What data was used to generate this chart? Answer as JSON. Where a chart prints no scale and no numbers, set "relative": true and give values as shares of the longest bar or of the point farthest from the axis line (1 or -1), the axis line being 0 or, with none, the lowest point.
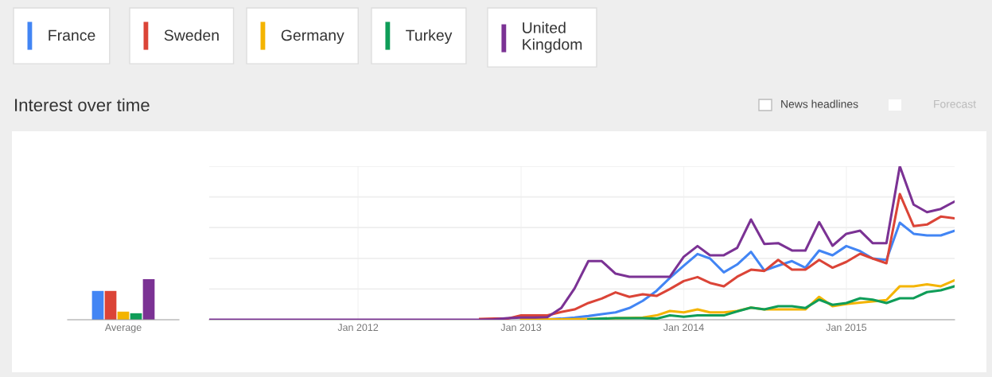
{
  "chart_data": [
    {
      "type": "bar",
      "relative": true,
      "categories": [
        "Average"
      ],
      "series": [
        {
          "color": "#4285f4",
          "values": [
            0.71
          ]
        },
        {
          "color": "#db4437",
          "values": [
            0.71
          ]
        },
        {
          "color": "#f4b400",
          "values": [
            0.2
          ]
        },
        {
          "color": "#0f9d58",
          "values": [
            0.16
          ]
        },
        {
          "color": "#7b3294",
          "values": [
            1.0
          ]
        }
      ]
    },
    {
      "type": "line",
      "relative": true,
      "title": "Interest over time",
      "legend": "top left",
      "grid": true,
      "annotations": [
        "News headlines",
        "Forecast"
      ],
      "x": [
        "2011-02",
        "2011-03",
        "2011-04",
        "2011-05",
        "2011-06",
        "2011-07",
        "2011-08",
        "2011-09",
        "2011-10",
        "2011-11",
        "2011-12",
        "2012-01",
        "2012-02",
        "2012-03",
        "2012-04",
        "2012-05",
        "2012-06",
        "2012-07",
        "2012-08",
        "2012-09",
        "2012-10",
        "2012-11",
        "2012-12",
        "2013-01",
        "2013-02",
        "2013-03",
        "2013-04",
        "2013-05",
        "2013-06",
        "2013-07",
        "2013-08",
        "2013-09",
        "2013-10",
        "2013-11",
        "2013-12",
        "2014-01",
        "2014-02",
        "2014-03",
        "2014-04",
        "2014-05",
        "2014-06",
        "2014-07",
        "2014-08",
        "2014-09",
        "2014-10",
        "2014-11",
        "2014-12",
        "2015-01",
        "2015-02",
        "2015-03",
        "2015-04",
        "2015-05",
        "2015-06",
        "2015-07",
        "2015-08",
        "2015-09"
      ],
      "xlim": [
        "2011-02",
        "2015-09"
      ],
      "xticks": [
        {
          "value": "2012-01",
          "label": "Jan 2012"
        },
        {
          "value": "2013-01",
          "label": "Jan 2013"
        },
        {
          "value": "2014-01",
          "label": "Jan 2014"
        },
        {
          "value": "2015-01",
          "label": "Jan 2015"
        }
      ],
      "series": [
        {
          "name": "France",
          "color": "#4285f4",
          "values": [
            null,
            null,
            null,
            null,
            null,
            null,
            null,
            null,
            null,
            null,
            null,
            null,
            null,
            null,
            null,
            null,
            null,
            null,
            null,
            null,
            null,
            null,
            null,
            null,
            null,
            0.002,
            0.007,
            0.014,
            0.024,
            0.036,
            0.048,
            0.076,
            0.123,
            0.188,
            0.273,
            0.352,
            0.428,
            0.399,
            0.309,
            0.36,
            0.442,
            0.321,
            0.352,
            0.382,
            0.339,
            0.451,
            0.42,
            0.48,
            0.447,
            0.399,
            0.39,
            0.632,
            0.56,
            0.549,
            0.549,
            0.58
          ]
        },
        {
          "name": "Sweden",
          "color": "#db4437",
          "values": [
            null,
            null,
            null,
            null,
            null,
            null,
            null,
            null,
            null,
            null,
            null,
            null,
            null,
            null,
            null,
            null,
            null,
            null,
            null,
            null,
            0.005,
            0.007,
            0.007,
            0.028,
            0.028,
            0.028,
            0.05,
            0.067,
            0.109,
            0.138,
            0.178,
            0.149,
            0.166,
            0.155,
            0.2,
            0.252,
            0.278,
            0.24,
            0.218,
            0.28,
            0.326,
            0.318,
            0.39,
            0.326,
            0.326,
            0.39,
            0.339,
            0.377,
            0.43,
            0.399,
            0.368,
            0.819,
            0.61,
            0.62,
            0.672,
            0.661
          ]
        },
        {
          "name": "Germany",
          "color": "#f4b400",
          "values": [
            null,
            null,
            null,
            null,
            null,
            null,
            null,
            null,
            null,
            null,
            null,
            null,
            null,
            null,
            null,
            null,
            null,
            null,
            null,
            null,
            null,
            null,
            null,
            0.003,
            0.002,
            0.002,
            0.003,
            0.004,
            0.005,
            0.007,
            0.01,
            0.012,
            0.014,
            0.028,
            0.057,
            0.048,
            0.067,
            0.048,
            0.048,
            0.057,
            0.079,
            0.067,
            0.067,
            0.067,
            0.067,
            0.149,
            0.088,
            0.102,
            0.111,
            0.119,
            0.128,
            0.218,
            0.218,
            0.23,
            0.218,
            0.257
          ]
        },
        {
          "name": "Turkey",
          "color": "#0f9d58",
          "values": [
            null,
            null,
            null,
            null,
            null,
            null,
            null,
            null,
            null,
            null,
            null,
            null,
            null,
            null,
            null,
            null,
            null,
            null,
            null,
            null,
            null,
            null,
            null,
            null,
            null,
            null,
            null,
            null,
            0.003,
            0.007,
            0.01,
            0.01,
            0.01,
            0.007,
            0.028,
            0.019,
            0.028,
            0.028,
            0.028,
            0.054,
            0.079,
            0.067,
            0.088,
            0.088,
            0.076,
            0.131,
            0.097,
            0.109,
            0.14,
            0.131,
            0.109,
            0.14,
            0.14,
            0.18,
            0.192,
            0.218
          ]
        },
        {
          "name": "United Kingdom",
          "color": "#7b3294",
          "values": [
            0,
            0,
            0,
            0,
            0,
            0,
            0,
            0,
            0,
            0,
            0,
            0,
            0,
            0,
            0,
            0,
            0,
            0,
            0,
            0,
            0,
            0.003,
            0.01,
            0.014,
            0.014,
            0.017,
            0.076,
            0.204,
            0.382,
            0.382,
            0.3,
            0.28,
            0.28,
            0.28,
            0.28,
            0.41,
            0.48,
            0.42,
            0.42,
            0.468,
            0.653,
            0.494,
            0.499,
            0.451,
            0.451,
            0.636,
            0.482,
            0.56,
            0.58,
            0.499,
            0.499,
            1.0,
            0.75,
            0.701,
            0.722,
            0.77
          ]
        }
      ]
    }
  ]
}
